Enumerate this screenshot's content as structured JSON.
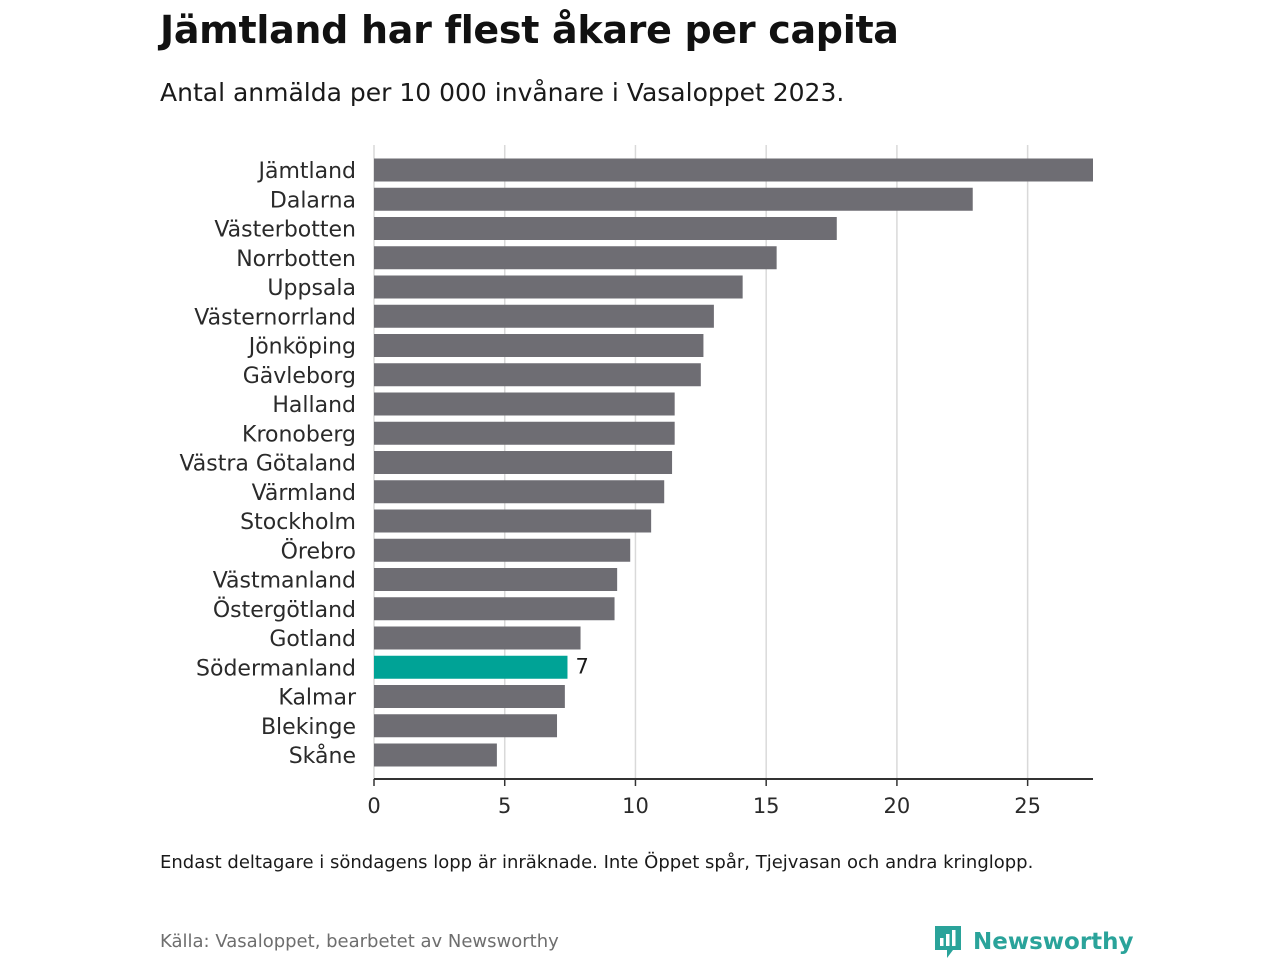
{
  "header": {
    "title": "Jämtland har flest åkare per capita",
    "subtitle": "Antal anmälda per 10 000 invånare i Vasaloppet 2023."
  },
  "chart_data": {
    "type": "bar",
    "orientation": "horizontal",
    "categories": [
      "Jämtland",
      "Dalarna",
      "Västerbotten",
      "Norrbotten",
      "Uppsala",
      "Västernorrland",
      "Jönköping",
      "Gävleborg",
      "Halland",
      "Kronoberg",
      "Västra Götaland",
      "Värmland",
      "Stockholm",
      "Örebro",
      "Västmanland",
      "Östergötland",
      "Gotland",
      "Södermanland",
      "Kalmar",
      "Blekinge",
      "Skåne"
    ],
    "values": [
      27.5,
      22.9,
      17.7,
      15.4,
      14.1,
      13.0,
      12.6,
      12.5,
      11.5,
      11.5,
      11.4,
      11.1,
      10.6,
      9.8,
      9.3,
      9.2,
      7.9,
      7.4,
      7.3,
      7.0,
      4.7
    ],
    "xlim": [
      0,
      27.5
    ],
    "xticks": [
      0,
      5,
      10,
      15,
      20,
      25
    ],
    "grid": "vertical",
    "highlight": {
      "category": "Södermanland",
      "label": "7"
    },
    "colors": {
      "bar": "#6e6d73",
      "highlight": "#00a396",
      "grid": "#d9d9d9",
      "axis": "#333333"
    }
  },
  "footer": {
    "note": "Endast deltagare i söndagens lopp är inräknade. Inte Öppet spår, Tjejvasan och andra kringlopp.",
    "source": "Källa: Vasaloppet, bearbetet av Newsworthy",
    "brand": "Newsworthy",
    "brand_icon": "newsworthy-logo-icon",
    "brand_color": "#2aa39a"
  }
}
